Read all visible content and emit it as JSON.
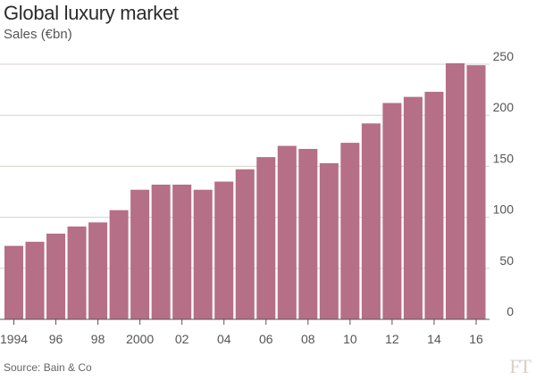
{
  "chart_data": {
    "type": "bar",
    "title": "Global luxury market",
    "subtitle": "Sales (€bn)",
    "categories": [
      "1994",
      "1995",
      "1996",
      "1997",
      "1998",
      "1999",
      "2000",
      "2001",
      "2002",
      "2003",
      "2004",
      "2005",
      "2006",
      "2007",
      "2008",
      "2009",
      "2010",
      "2011",
      "2012",
      "2013",
      "2014",
      "2015",
      "2016"
    ],
    "x_tick_labels": [
      "1994",
      "",
      "96",
      "",
      "98",
      "",
      "2000",
      "",
      "02",
      "",
      "04",
      "",
      "06",
      "",
      "08",
      "",
      "10",
      "",
      "12",
      "",
      "14",
      "",
      "16"
    ],
    "values": [
      72,
      76,
      84,
      91,
      95,
      107,
      127,
      132,
      132,
      127,
      135,
      147,
      159,
      170,
      167,
      153,
      173,
      192,
      212,
      218,
      223,
      251,
      249
    ],
    "ylim": [
      0,
      250
    ],
    "y_ticks": [
      0,
      50,
      100,
      150,
      200,
      250
    ],
    "y_axis_side": "right",
    "grid": true,
    "bar_color": "#b56f86",
    "grid_color": "#d6d2cc"
  },
  "source": "Source: Bain & Co",
  "logo": "FT"
}
